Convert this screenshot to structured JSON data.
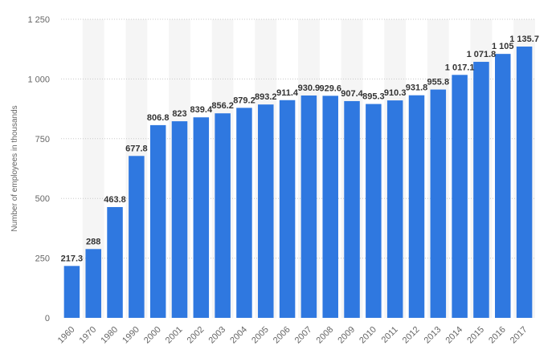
{
  "chart_data": {
    "type": "bar",
    "ylabel": "Number of employees in thousands",
    "xlabel": "",
    "ylim": [
      0,
      1250
    ],
    "yticks": [
      0,
      250,
      500,
      750,
      1000,
      1250
    ],
    "ytick_labels": [
      "0",
      "250",
      "500",
      "750",
      "1 000",
      "1 250"
    ],
    "grid": true,
    "bar_color": "#2f78e0",
    "band_color": "#f5f5f5",
    "categories": [
      "1960",
      "1970",
      "1980",
      "1990",
      "2000",
      "2001",
      "2002",
      "2003",
      "2004",
      "2005",
      "2006",
      "2007",
      "2008",
      "2009",
      "2010",
      "2011",
      "2012",
      "2013",
      "2014",
      "2015",
      "2016",
      "2017"
    ],
    "values": [
      217.3,
      288,
      463.8,
      677.8,
      806.8,
      823,
      839.4,
      856.2,
      879.2,
      893.2,
      911.4,
      930.9,
      929.6,
      907.4,
      895.3,
      910.3,
      931.8,
      955.8,
      1017.1,
      1071.8,
      1105,
      1135.7
    ],
    "value_labels": [
      "217.3",
      "288",
      "463.8",
      "677.8",
      "806.8",
      "823",
      "839.4",
      "856.2",
      "879.2",
      "893.2",
      "911.4",
      "930.9",
      "929.6",
      "907.4",
      "895.3",
      "910.3",
      "931.8",
      "955.8",
      "1 017.1",
      "1 071.8",
      "1 105",
      "1 135.7"
    ]
  }
}
